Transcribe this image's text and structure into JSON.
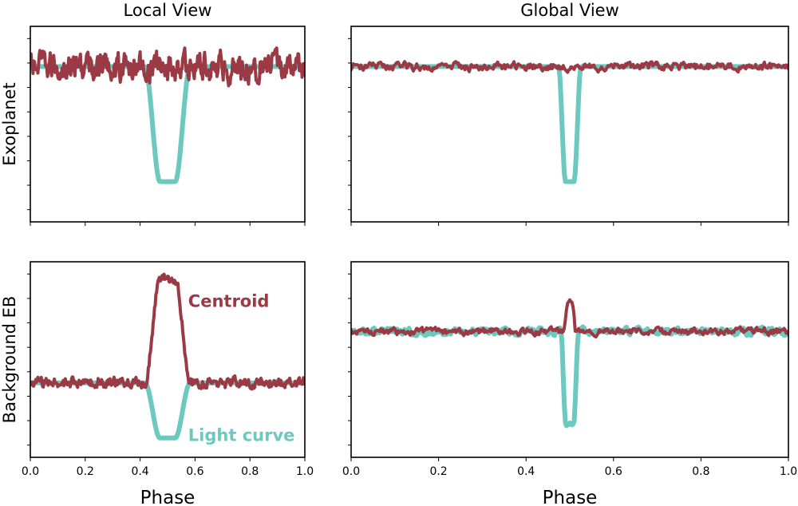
{
  "chart_data": [
    {
      "type": "line",
      "panel": "top-left",
      "column_title": "Local View",
      "row_label": "Exoplanet",
      "xlabel": "",
      "xlim": [
        0.0,
        1.0
      ],
      "ylim": [
        -1.35,
        0.35
      ],
      "x_ticks": [
        0.0,
        0.2,
        0.4,
        0.6,
        0.8,
        1.0
      ],
      "y_tick_labels_shown": false,
      "series": [
        {
          "name": "",
          "color": "#6cc9c0",
          "width": 6,
          "noise": 0.0,
          "dip": {
            "center": 0.5,
            "halfwidth": 0.07,
            "depth": 1.0,
            "edge": 0.6
          }
        },
        {
          "name": "",
          "color": "#9b3a44",
          "width": 4,
          "noise": 0.1,
          "bump": null
        }
      ]
    },
    {
      "type": "line",
      "panel": "top-right",
      "column_title": "Global View",
      "row_label": "",
      "xlabel": "",
      "xlim": [
        0.0,
        1.0
      ],
      "ylim": [
        -1.35,
        0.35
      ],
      "x_ticks": [
        0.0,
        0.2,
        0.4,
        0.6,
        0.8,
        1.0
      ],
      "y_tick_labels_shown": false,
      "series": [
        {
          "name": "",
          "color": "#6cc9c0",
          "width": 6,
          "noise": 0.0,
          "dip": {
            "center": 0.5,
            "halfwidth": 0.022,
            "depth": 1.0,
            "edge": 0.55
          }
        },
        {
          "name": "",
          "color": "#9b3a44",
          "width": 4,
          "noise": 0.03,
          "bump": null
        }
      ]
    },
    {
      "type": "line",
      "panel": "bottom-left",
      "column_title": "",
      "row_label": "Background EB",
      "xlabel": "Phase",
      "xlim": [
        0.0,
        1.0
      ],
      "ylim": [
        -1.35,
        2.2
      ],
      "x_ticks": [
        0.0,
        0.2,
        0.4,
        0.6,
        0.8,
        1.0
      ],
      "y_tick_labels_shown": false,
      "annotations": [
        {
          "text": "Centroid",
          "x": 0.575,
          "y": 1.38,
          "color": "#9b3a44"
        },
        {
          "text": "Light curve",
          "x": 0.575,
          "y": -1.05,
          "color": "#6cc9c0"
        }
      ],
      "series": [
        {
          "name": "Light curve",
          "color": "#6cc9c0",
          "width": 6,
          "noise": 0.0,
          "dip": {
            "center": 0.5,
            "halfwidth": 0.07,
            "depth": 1.0,
            "edge": 0.6
          }
        },
        {
          "name": "Centroid",
          "color": "#9b3a44",
          "width": 4,
          "noise": 0.08,
          "bump": {
            "center": 0.5,
            "halfwidth": 0.07,
            "height": 1.9,
            "edge": 0.6
          }
        }
      ]
    },
    {
      "type": "line",
      "panel": "bottom-right",
      "column_title": "",
      "row_label": "",
      "xlabel": "Phase",
      "xlim": [
        0.0,
        1.0
      ],
      "ylim": [
        -1.35,
        0.75
      ],
      "x_ticks": [
        0.0,
        0.2,
        0.4,
        0.6,
        0.8,
        1.0
      ],
      "y_tick_labels_shown": false,
      "series": [
        {
          "name": "",
          "color": "#6cc9c0",
          "width": 6,
          "noise": 0.03,
          "dip": {
            "center": 0.5,
            "halfwidth": 0.018,
            "depth": 1.0,
            "edge": 0.5
          }
        },
        {
          "name": "",
          "color": "#9b3a44",
          "width": 4,
          "noise": 0.03,
          "bump": {
            "center": 0.5,
            "halfwidth": 0.012,
            "height": 0.3,
            "edge": 0.5
          }
        }
      ]
    }
  ]
}
